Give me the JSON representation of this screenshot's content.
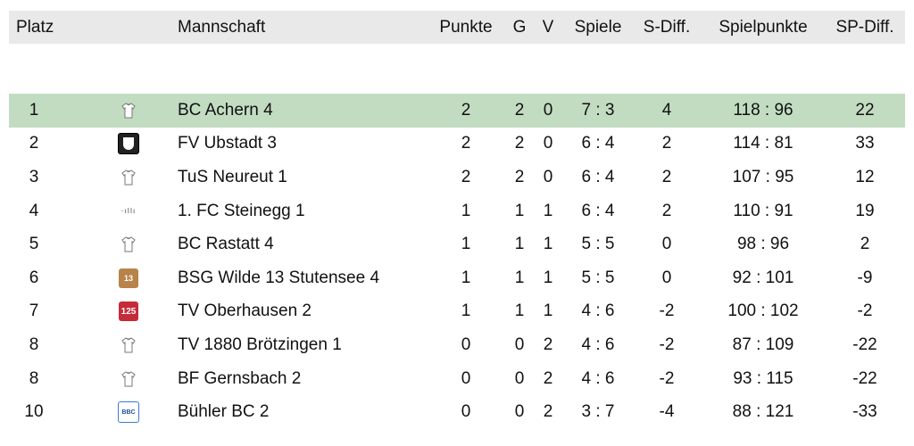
{
  "headers": {
    "platz": "Platz",
    "mannschaft": "Mannschaft",
    "punkte": "Punkte",
    "g": "G",
    "v": "V",
    "spiele": "Spiele",
    "sdiff": "S-Diff.",
    "spielpunkte": "Spielpunkte",
    "spdiff": "SP-Diff."
  },
  "colors": {
    "header_bg": "#e9e9e9",
    "highlight_bg": "#c2dcc2"
  },
  "rows": [
    {
      "platz": "1",
      "logo": "shirt-icon",
      "team": "BC Achern 4",
      "punkte": "2",
      "g": "2",
      "v": "0",
      "spiele": "7 : 3",
      "sdiff": "4",
      "sp": "118 : 96",
      "spdiff": "22"
    },
    {
      "platz": "2",
      "logo": "club-logo-ubstadt",
      "team": "FV Ubstadt 3",
      "punkte": "2",
      "g": "2",
      "v": "0",
      "spiele": "6 : 4",
      "sdiff": "2",
      "sp": "114 : 81",
      "spdiff": "33"
    },
    {
      "platz": "3",
      "logo": "shirt-icon",
      "team": "TuS Neureut 1",
      "punkte": "2",
      "g": "2",
      "v": "0",
      "spiele": "6 : 4",
      "sdiff": "2",
      "sp": "107 : 95",
      "spdiff": "12"
    },
    {
      "platz": "4",
      "logo": "club-logo-steinegg",
      "team": "1. FC Steinegg 1",
      "punkte": "1",
      "g": "1",
      "v": "1",
      "spiele": "6 : 4",
      "sdiff": "2",
      "sp": "110 : 91",
      "spdiff": "19"
    },
    {
      "platz": "5",
      "logo": "shirt-icon",
      "team": "BC Rastatt 4",
      "punkte": "1",
      "g": "1",
      "v": "1",
      "spiele": "5 : 5",
      "sdiff": "0",
      "sp": "98 : 96",
      "spdiff": "2"
    },
    {
      "platz": "6",
      "logo": "club-logo-wilde13",
      "team": "BSG Wilde 13 Stutensee 4",
      "punkte": "1",
      "g": "1",
      "v": "1",
      "spiele": "5 : 5",
      "sdiff": "0",
      "sp": "92 : 101",
      "spdiff": "-9"
    },
    {
      "platz": "7",
      "logo": "club-logo-oberhausen",
      "team": "TV Oberhausen 2",
      "punkte": "1",
      "g": "1",
      "v": "1",
      "spiele": "4 : 6",
      "sdiff": "-2",
      "sp": "100 : 102",
      "spdiff": "-2"
    },
    {
      "platz": "8",
      "logo": "shirt-icon",
      "team": "TV 1880 Brötzingen 1",
      "punkte": "0",
      "g": "0",
      "v": "2",
      "spiele": "4 : 6",
      "sdiff": "-2",
      "sp": "87 : 109",
      "spdiff": "-22"
    },
    {
      "platz": "8",
      "logo": "shirt-icon",
      "team": "BF Gernsbach 2",
      "punkte": "0",
      "g": "0",
      "v": "2",
      "spiele": "4 : 6",
      "sdiff": "-2",
      "sp": "93 : 115",
      "spdiff": "-22"
    },
    {
      "platz": "10",
      "logo": "club-logo-buehler",
      "team": "Bühler BC 2",
      "punkte": "0",
      "g": "0",
      "v": "2",
      "spiele": "3 : 7",
      "sdiff": "-4",
      "sp": "88 : 121",
      "spdiff": "-33"
    }
  ]
}
